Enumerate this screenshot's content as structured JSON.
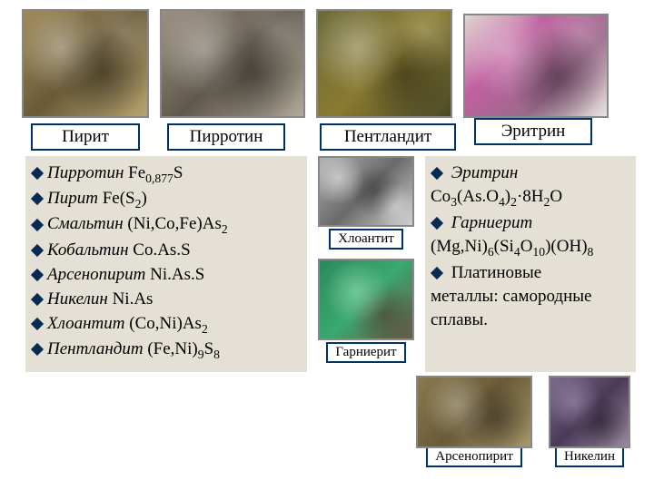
{
  "top_labels": {
    "pyrite": "Пирит",
    "pyrrhotite": "Пирротин",
    "pentlandite": "Пентландит",
    "erythrine": "Эритрин"
  },
  "left_list": [
    {
      "name": "Пирротин",
      "formula_html": "Fe<sub>0,877</sub>S"
    },
    {
      "name": "Пирит",
      "formula_html": "Fe(S<sub>2</sub>)"
    },
    {
      "name": "Смальтин",
      "formula_html": "(Ni,Co,Fe)As<sub>2</sub>"
    },
    {
      "name": "Кобальтин",
      "formula_html": "Co.As.S"
    },
    {
      "name": "Арсенопирит",
      "formula_html": "Ni.As.S"
    },
    {
      "name": "Никелин",
      "formula_html": "Ni.As"
    },
    {
      "name": "Хлоантит",
      "formula_html": "(Co,Ni)As<sub>2</sub>"
    },
    {
      "name": "Пентландит",
      "formula_html": "(Fe,Ni)<sub>9</sub>S<sub>8</sub>"
    }
  ],
  "mid_labels": {
    "chloanthite": "Хлоантит",
    "garnierite": "Гарниерит"
  },
  "right_list_html": "<div class=\"bullet-line\"><span class=\"bul\"></span> <span class=\"ital\">Эритрин</span></div>Co<sub>3</sub>(As.O<sub>4</sub>)<sub>2</sub>·8H<sub>2</sub>O<div class=\"bullet-line\"><span class=\"bul\"></span> <span class=\"ital\">Гарниерит</span></div>(Mg,Ni)<sub>6</sub>(Si<sub>4</sub>O<sub>10</sub>)(OH)<sub>8</sub><div class=\"bullet-line\"><span class=\"bul\"></span> Платиновые</div>металлы: самородные сплавы.",
  "bottom_labels": {
    "arsenopyrite": "Арсенопирит",
    "nickeline": "Никелин"
  },
  "colors": {
    "frame_border": "#003366",
    "panel_bg": "#e4e0d6",
    "bullet": "#062a52"
  }
}
